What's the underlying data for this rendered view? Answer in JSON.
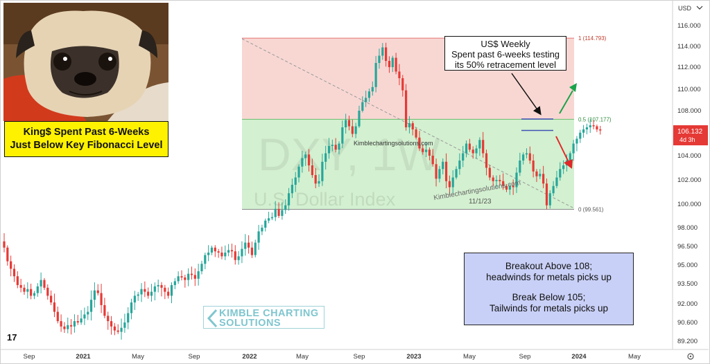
{
  "chart_data": {
    "type": "candlestick",
    "symbol_watermark": "DXY, 1W",
    "index_watermark": "U.S. Dollar Index",
    "currency_label": "USD",
    "y_ticks": [
      "116.000",
      "114.000",
      "112.000",
      "110.000",
      "108.000",
      "106.000",
      "104.000",
      "102.000",
      "100.000",
      "98.000",
      "96.500",
      "95.000",
      "93.500",
      "92.000",
      "90.600",
      "89.200"
    ],
    "x_ticks": [
      "Sep",
      "2021",
      "May",
      "Sep",
      "2022",
      "May",
      "Sep",
      "2023",
      "May",
      "Sep",
      "2024",
      "May"
    ],
    "last_price": "106.132",
    "countdown": "4d 3h",
    "fibonacci": {
      "levels": [
        {
          "label": "1 (114.793)",
          "value": 114.793
        },
        {
          "label": "0.5 (107.177)",
          "value": 107.177
        },
        {
          "label": "0 (99.561)",
          "value": 99.561
        }
      ]
    },
    "closes": [
      96.4,
      95.3,
      94.7,
      94.1,
      93.4,
      93.2,
      92.9,
      93.1,
      92.6,
      92.8,
      93.3,
      93.8,
      93.2,
      92.6,
      92.1,
      91.4,
      90.7,
      90.3,
      90.1,
      90.4,
      90.3,
      90.7,
      90.6,
      90.9,
      91.2,
      91.4,
      92.3,
      93.0,
      92.8,
      91.9,
      91.1,
      90.7,
      90.3,
      90.0,
      89.9,
      90.2,
      90.6,
      91.3,
      92.1,
      92.6,
      92.7,
      93.1,
      92.9,
      92.6,
      92.9,
      93.3,
      93.4,
      93.2,
      92.9,
      92.6,
      93.4,
      93.7,
      94.1,
      94.0,
      93.8,
      94.3,
      94.2,
      93.9,
      94.5,
      95.1,
      95.8,
      96.0,
      96.4,
      96.1,
      96.0,
      95.7,
      96.0,
      96.2,
      96.1,
      95.4,
      95.7,
      96.3,
      96.8,
      96.4,
      95.8,
      96.8,
      97.7,
      98.0,
      98.6,
      98.8,
      98.9,
      99.6,
      99.0,
      99.5,
      99.9,
      100.9,
      101.6,
      102.2,
      103.1,
      103.8,
      104.1,
      103.2,
      102.4,
      101.7,
      101.9,
      103.5,
      104.2,
      104.8,
      104.9,
      104.5,
      105.0,
      106.4,
      107.1,
      106.5,
      105.8,
      106.5,
      108.0,
      108.8,
      109.2,
      109.8,
      110.2,
      112.4,
      113.1,
      113.9,
      112.6,
      112.0,
      112.9,
      111.6,
      111.0,
      109.9,
      106.4,
      106.8,
      106.2,
      105.5,
      104.6,
      104.3,
      104.5,
      104.0,
      103.3,
      102.1,
      102.9,
      103.5,
      101.9,
      101.4,
      102.2,
      102.9,
      103.6,
      104.2,
      105.0,
      104.5,
      104.2,
      104.6,
      105.3,
      104.2,
      103.0,
      102.2,
      101.9,
      102.0,
      101.9,
      101.5,
      101.2,
      101.5,
      101.4,
      102.6,
      103.6,
      104.1,
      104.2,
      103.6,
      102.7,
      102.3,
      102.5,
      101.7,
      99.9,
      100.9,
      101.5,
      102.2,
      102.9,
      103.2,
      103.6,
      104.2,
      105.0,
      105.4,
      105.9,
      106.2,
      106.4,
      106.6,
      106.5,
      106.2,
      106.1
    ],
    "callout": {
      "title": "US$ Weekly",
      "lines": [
        "Spent past 6-weeks testing",
        "its 50% retracement level"
      ]
    },
    "annotations": {
      "watermark_url_1": "Kimblechartingsolutions.com",
      "watermark_url_2": "Kimblechartingsolutions.com",
      "trend_date": "11/1/23"
    },
    "info_box": {
      "line1": "Breakout Above 108;",
      "line2": "headwinds for metals picks up",
      "line3": "Break Below 105;",
      "line4": "Tailwinds for metals picks up"
    },
    "caption": {
      "line1": "King$ Spent Past 6-Weeks",
      "line2": "Just Below Key Fibonacci Level"
    },
    "logo": {
      "line1": "KIMBLE CHARTING",
      "line2": "SOLUTIONS"
    },
    "tv_logo": "17",
    "colors": {
      "up": "#26a69a",
      "down": "#e53935",
      "fib_upper": "#f8d7d3",
      "fib_lower": "#d3f0d0",
      "arrow_up": "#1aa34a",
      "arrow_down": "#e02828",
      "support_line": "#3f51b5",
      "price_badge": "#e53935"
    }
  }
}
